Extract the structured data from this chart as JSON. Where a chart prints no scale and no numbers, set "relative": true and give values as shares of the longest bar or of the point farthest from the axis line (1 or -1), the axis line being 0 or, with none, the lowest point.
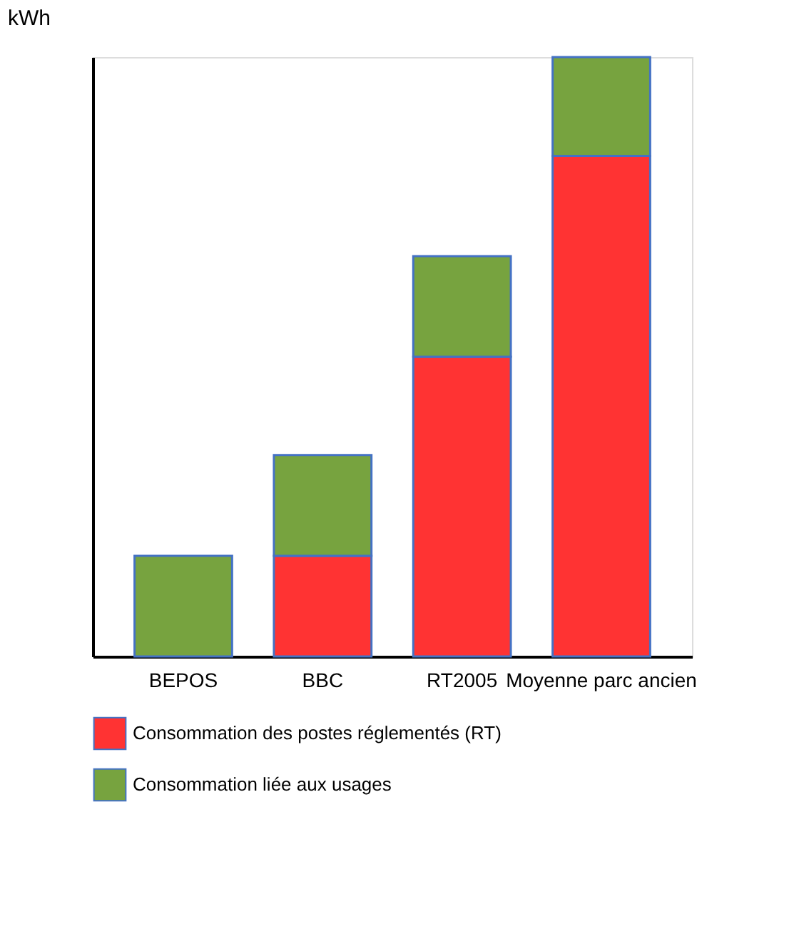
{
  "chart_data": {
    "type": "bar",
    "stacked": true,
    "relative": true,
    "ylabel": "kWh",
    "categories": [
      "BEPOS",
      "BBC",
      "RT2005",
      "Moyenne parc ancien"
    ],
    "series": [
      {
        "name": "Consommation des postes réglementés (RT)",
        "color": "#ff3333",
        "values": [
          null,
          0.168,
          0.5,
          0.835
        ]
      },
      {
        "name": "Consommation liée aux usages",
        "color": "#77a33f",
        "values": [
          0.168,
          0.168,
          0.168,
          0.165
        ]
      }
    ],
    "legend": "bottom"
  }
}
